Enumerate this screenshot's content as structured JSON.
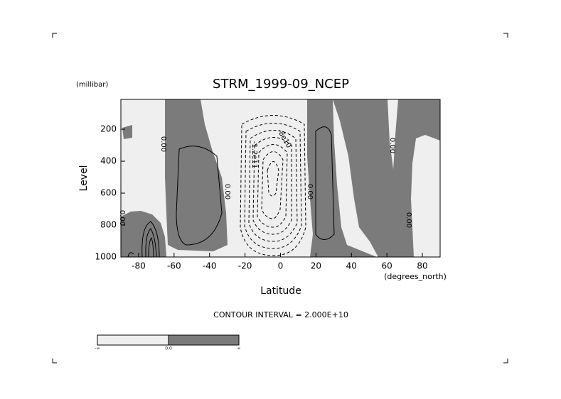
{
  "chart_data": {
    "type": "contour",
    "title": "STRM_1999-09_NCEP",
    "y_units": "(millibar)",
    "y_label": "Level",
    "x_label": "Latitude",
    "x_units": "(degrees_north)",
    "subtitle": "CONTOUR INTERVAL = 2.000E+10",
    "xlim": [
      -90,
      90
    ],
    "xticks": [
      -80,
      -60,
      -40,
      -20,
      0,
      20,
      40,
      60,
      80
    ],
    "ylim": [
      1000,
      13
    ],
    "yticks": [
      200,
      400,
      600,
      800,
      1000
    ],
    "contour_labels": [
      "0.00",
      "0.00",
      "0.00",
      "0.00",
      "0.00",
      "0.00",
      "0.00",
      "-8e10",
      "-1.2e11"
    ],
    "colors": {
      "negative": "#efefef",
      "positive": "#7b7b7b"
    },
    "colorbar_labels": [
      "-∞",
      "0.0",
      "∞"
    ]
  }
}
